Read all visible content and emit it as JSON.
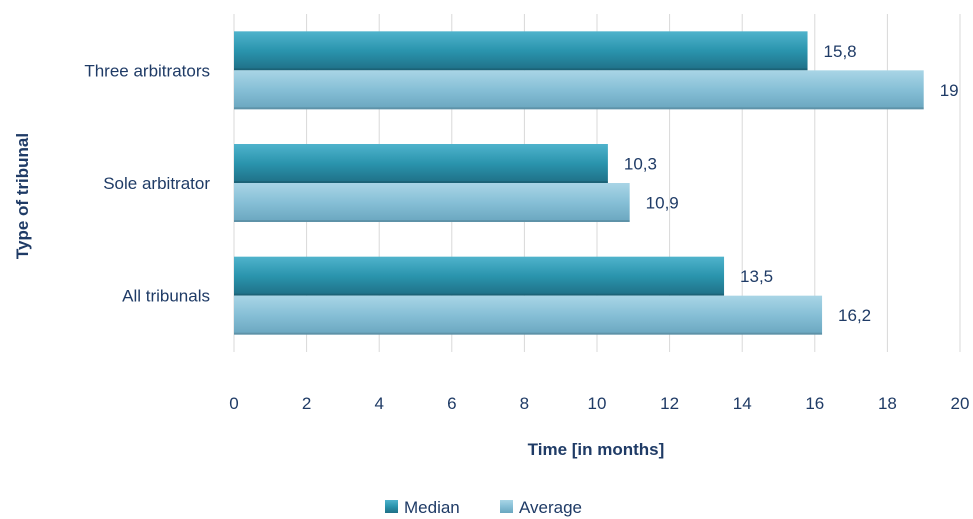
{
  "chart_data": {
    "type": "bar",
    "orientation": "horizontal",
    "categories": [
      "All tribunals",
      "Sole arbitrator",
      "Three arbitrators"
    ],
    "series": [
      {
        "name": "Median",
        "values": [
          13.5,
          10.3,
          15.8
        ],
        "labels": [
          "13,5",
          "10,3",
          "15,8"
        ],
        "color": "#2d8fa8"
      },
      {
        "name": "Average",
        "values": [
          16.2,
          10.9,
          19
        ],
        "labels": [
          "16,2",
          "10,9",
          "19"
        ],
        "color": "#8cc3d9"
      }
    ],
    "xlabel": "Time [in months]",
    "ylabel": "Type of tribunal",
    "xlim": [
      0,
      20
    ],
    "xticks": [
      "0",
      "2",
      "4",
      "6",
      "8",
      "10",
      "12",
      "14",
      "16",
      "18",
      "20"
    ],
    "grid": "vertical",
    "legend_position": "bottom"
  }
}
